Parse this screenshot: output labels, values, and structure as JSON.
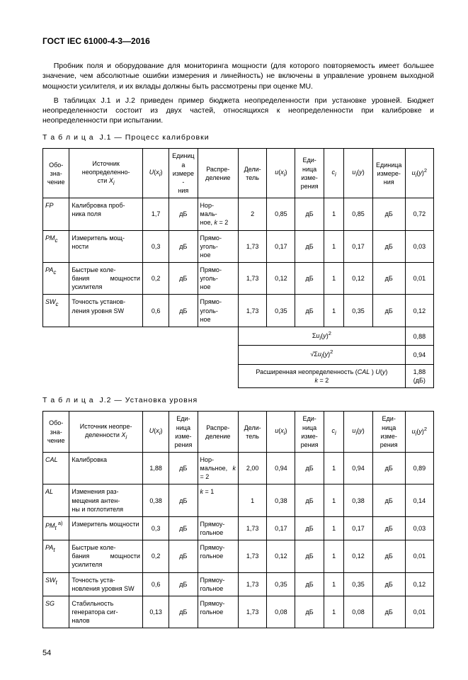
{
  "header": "ГОСТ IEC 61000-4-3—2016",
  "paragraphs": [
    "Пробник поля и оборудование для мониторинга мощности (для которого повторяемость имеет большее значение, чем абсолютные ошибки измерения и линейность) не включены в управление уровнем выходной мощности усилителя, и их вклады должны быть рассмотрены при оценке MU.",
    "В таблицах J.1 и J.2 приведен пример бюджета неопределенности при установке уровней. Бюджет неопределенности состоит из двух частей, относящихся к неопределенности при калибровке и неопределенности при испытании."
  ],
  "table1": {
    "caption_prefix": "Т а б л и ц а",
    "caption": "J.1 — Процесс калибровки",
    "headers": [
      "Обо-\nзна-\nчение",
      "Источник неопределенно-\nсти X",
      "U(x)",
      "Единица измере-\nния",
      "Распре-\nделение",
      "Дели-\nтель",
      "u(x)",
      "Еди-\nница изме-\nрения",
      "c",
      "u(y)",
      "Единица измере-\nния",
      "u(y)²"
    ],
    "rows": [
      [
        "FP",
        "Калибровка проб-\nника поля",
        "1,7",
        "дБ",
        "Нор-\nмаль-\nное, k = 2",
        "2",
        "0,85",
        "дБ",
        "1",
        "0,85",
        "дБ",
        "0,72"
      ],
      [
        "PMc",
        "Измеритель мощ-\nности",
        "0,3",
        "дБ",
        "Прямо-\nуголь-\nное",
        "1,73",
        "0,17",
        "дБ",
        "1",
        "0,17",
        "дБ",
        "0,03"
      ],
      [
        "PAc",
        "Быстрые коле-\nбания мощности усилителя",
        "0,2",
        "дБ",
        "Прямо-\nуголь-\nное",
        "1,73",
        "0,12",
        "дБ",
        "1",
        "0,12",
        "дБ",
        "0,01"
      ],
      [
        "SWc",
        "Точность установ-\nления уровня SW",
        "0,6",
        "дБ",
        "Прямо-\nуголь-\nное",
        "1,73",
        "0,35",
        "дБ",
        "1",
        "0,35",
        "дБ",
        "0,12"
      ]
    ],
    "summary": [
      [
        "Σu(y)²",
        "0,88"
      ],
      [
        "√Σu(y)²",
        "0,94"
      ],
      [
        "Расширенная неопределенность (CAL ) U(y) k = 2",
        "1,88 (дБ)"
      ]
    ]
  },
  "table2": {
    "caption_prefix": "Т а б л и ц а",
    "caption": "J.2 — Установка уровня",
    "headers": [
      "Обо-\nзна-\nчение",
      "Источник неопре-\nделенности X",
      "U(x)",
      "Еди-\nница изме-\nрения",
      "Распре-\nделение",
      "Дели-\nтель",
      "u(x)",
      "Еди-\nница изме-\nрения",
      "c",
      "u(y)",
      "Еди-\nница изме-\nрения",
      "u(y)²"
    ],
    "rows": [
      [
        "CAL",
        "Калибровка",
        "1,88",
        "дБ",
        "Нор-\nмальное, k = 2",
        "2,00",
        "0,94",
        "дБ",
        "1",
        "0,94",
        "дБ",
        "0,89"
      ],
      [
        "AL",
        "Изменения раз-\nмещения антен-\nны и поглотителя",
        "0,38",
        "дБ",
        "k = 1",
        "1",
        "0,38",
        "дБ",
        "1",
        "0,38",
        "дБ",
        "0,14"
      ],
      [
        "PMt a)",
        "Измеритель мощности",
        "0,3",
        "дБ",
        "Прямоу-\nгольное",
        "1,73",
        "0,17",
        "дБ",
        "1",
        "0,17",
        "дБ",
        "0,03"
      ],
      [
        "PAt",
        "Быстрые коле-\nбания мощности усилителя",
        "0,2",
        "дБ",
        "Прямоу-\nгольное",
        "1,73",
        "0,12",
        "дБ",
        "1",
        "0,12",
        "дБ",
        "0,01"
      ],
      [
        "SWt",
        "Точность уста-\nновления уровня SW",
        "0,6",
        "дБ",
        "Прямоу-\nгольное",
        "1,73",
        "0,35",
        "дБ",
        "1",
        "0,35",
        "дБ",
        "0,12"
      ],
      [
        "SG",
        "Стабильность генератора сиг-\nналов",
        "0,13",
        "дБ",
        "Прямоу-\nгольное",
        "1,73",
        "0,08",
        "дБ",
        "1",
        "0,08",
        "дБ",
        "0,01"
      ]
    ]
  },
  "pagenum": "54"
}
